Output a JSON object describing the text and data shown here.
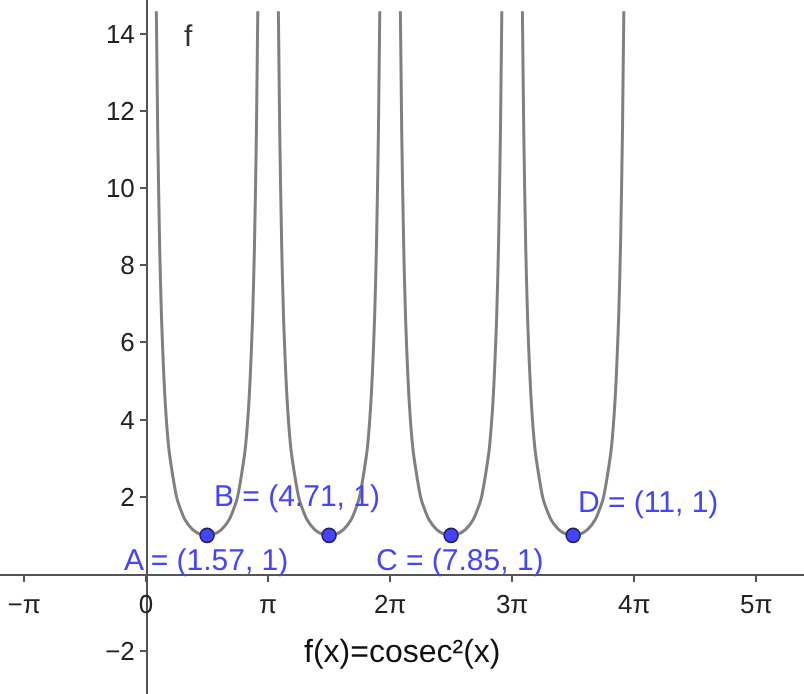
{
  "chart_data": {
    "type": "line",
    "annotations": [
      "f(x)=cosec²(x)",
      {
        "text": "A = (1.57, 1)",
        "x": 1.571,
        "y": 1
      },
      {
        "text": "B = (4.71, 1)",
        "x": 4.712,
        "y": 1
      },
      {
        "text": "C = (7.85, 1)",
        "x": 7.854,
        "y": 1
      },
      {
        "text": "D = (11, 1)",
        "x": 10.996,
        "y": 1
      }
    ],
    "series": [
      {
        "name": "f",
        "color": "#808080",
        "x": [
          0.265,
          0.3,
          0.35,
          0.4,
          0.5,
          0.6,
          0.8,
          1.0,
          1.2,
          1.4,
          1.571,
          1.742,
          1.942,
          2.142,
          2.342,
          2.542,
          2.642,
          2.742,
          2.792,
          2.842,
          2.877,
          3.0,
          3.407,
          3.442,
          3.492,
          3.542,
          3.642,
          3.742,
          3.942,
          4.142,
          4.342,
          4.542,
          4.712,
          4.883,
          5.083,
          5.283,
          5.483,
          5.683,
          5.783,
          5.883,
          5.933,
          5.983,
          6.018,
          6.2,
          6.548,
          6.583,
          6.633,
          6.683,
          6.783,
          6.883,
          7.083,
          7.283,
          7.483,
          7.683,
          7.854,
          8.025,
          8.225,
          8.425,
          8.625,
          8.825,
          8.925,
          9.025,
          9.075,
          9.125,
          9.16,
          9.3,
          9.69,
          9.725,
          9.775,
          9.825,
          9.925,
          10.025,
          10.225,
          10.425,
          10.625,
          10.825,
          10.996,
          11.166,
          11.366,
          11.566,
          11.766,
          11.966,
          12.066,
          12.166,
          12.216,
          12.266,
          12.301
        ],
        "values": [
          14.58,
          11.45,
          8.5,
          6.59,
          4.35,
          3.14,
          1.94,
          1.41,
          1.15,
          1.03,
          1,
          1.03,
          1.15,
          1.41,
          1.94,
          3.14,
          4.35,
          6.59,
          8.5,
          11.45,
          14.58,
          null,
          14.58,
          11.45,
          8.5,
          6.59,
          4.35,
          3.14,
          1.94,
          1.41,
          1.15,
          1.03,
          1,
          1.03,
          1.15,
          1.41,
          1.94,
          3.14,
          4.35,
          6.59,
          8.5,
          11.45,
          14.58,
          null,
          14.58,
          11.45,
          8.5,
          6.59,
          4.35,
          3.14,
          1.94,
          1.41,
          1.15,
          1.03,
          1,
          1.03,
          1.15,
          1.41,
          1.94,
          3.14,
          4.35,
          6.59,
          8.5,
          11.45,
          14.58,
          null,
          14.58,
          11.45,
          8.5,
          6.59,
          4.35,
          3.14,
          1.94,
          1.41,
          1.15,
          1.03,
          1,
          1.03,
          1.15,
          1.41,
          1.94,
          3.14,
          4.35,
          6.59,
          8.5,
          11.45,
          14.58
        ]
      },
      {
        "color": "#4444ff",
        "type": "scatter",
        "x": [
          1.571,
          4.712,
          7.854,
          10.996
        ],
        "values": [
          1,
          1,
          1,
          1
        ]
      }
    ],
    "xlim": [
      -3.76,
      16.94
    ],
    "ylim": [
      -3.11,
      14.87
    ],
    "xticks": [
      {
        "value": -3.1416,
        "label": "−π"
      },
      0,
      {
        "value": 3.1416,
        "label": "π"
      },
      {
        "value": 6.2832,
        "label": "2π"
      },
      {
        "value": 9.4248,
        "label": "3π"
      },
      {
        "value": 12.5664,
        "label": "4π"
      },
      {
        "value": 15.708,
        "label": "5π"
      }
    ],
    "yticks": [
      -2,
      2,
      4,
      6,
      8,
      10,
      12,
      14
    ],
    "grid": false,
    "legend": false
  }
}
